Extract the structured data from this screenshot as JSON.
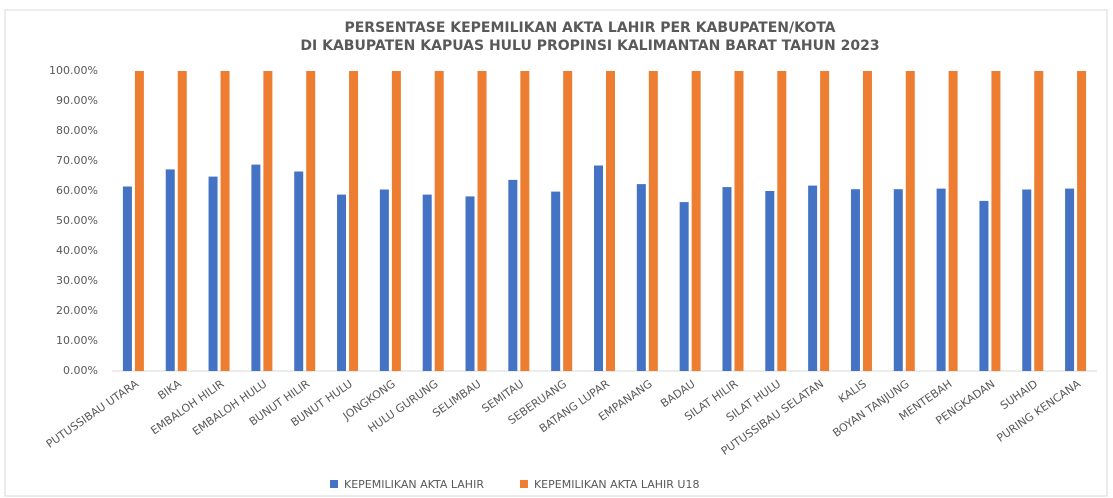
{
  "chart_data": {
    "type": "bar",
    "title": [
      "PERSENTASE KEPEMILIKAN AKTA LAHIR PER KABUPATEN/KOTA",
      "DI KABUPATEN KAPUAS HULU PROPINSI KALIMANTAN BARAT TAHUN 2023"
    ],
    "categories": [
      "PUTUSSIBAU UTARA",
      "BIKA",
      "EMBALOH HILIR",
      "EMBALOH HULU",
      "BUNUT HILIR",
      "BUNUT HULU",
      "JONGKONG",
      "HULU GURUNG",
      "SELIMBAU",
      "SEMITAU",
      "SEBERUANG",
      "BATANG LUPAR",
      "EMPANANG",
      "BADAU",
      "SILAT HILIR",
      "SILAT HULU",
      "PUTUSSIBAU SELATAN",
      "KALIS",
      "BOYAN TANJUNG",
      "MENTEBAH",
      "PENGKADAN",
      "SUHAID",
      "PURING KENCANA"
    ],
    "series": [
      {
        "name": "KEPEMILIKAN AKTA LAHIR",
        "color": "#4472c4",
        "values": [
          61.5,
          67.2,
          64.8,
          68.8,
          66.5,
          58.8,
          60.5,
          58.8,
          58.2,
          63.7,
          59.8,
          68.5,
          62.3,
          56.3,
          61.3,
          60.0,
          61.8,
          60.6,
          60.6,
          60.8,
          56.7,
          60.5,
          60.8
        ]
      },
      {
        "name": "KEPEMILIKAN AKTA LAHIR U18",
        "color": "#ed7d31",
        "values": [
          100,
          100,
          100,
          100,
          100,
          100,
          100,
          100,
          100,
          100,
          100,
          100,
          100,
          100,
          100,
          100,
          100,
          100,
          100,
          100,
          100,
          100,
          100
        ]
      }
    ],
    "ylim": [
      0,
      100
    ],
    "yticks": [
      {
        "value": 0,
        "label": "0.00%"
      },
      {
        "value": 10,
        "label": "10.00%"
      },
      {
        "value": 20,
        "label": "20.00%"
      },
      {
        "value": 30,
        "label": "30.00%"
      },
      {
        "value": 40,
        "label": "40.00%"
      },
      {
        "value": 50,
        "label": "50.00%"
      },
      {
        "value": 60,
        "label": "60.00%"
      },
      {
        "value": 70,
        "label": "70.00%"
      },
      {
        "value": 80,
        "label": "80.00%"
      },
      {
        "value": 90,
        "label": "90.00%"
      },
      {
        "value": 100,
        "label": "100.00%"
      }
    ],
    "grid": false
  }
}
